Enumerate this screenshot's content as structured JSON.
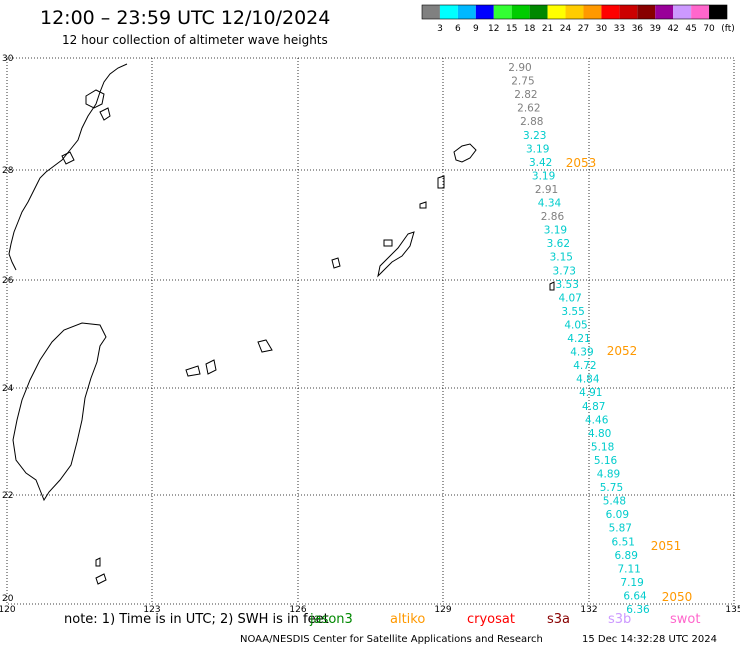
{
  "title": "12:00 – 23:59 UTC 12/10/2024",
  "subtitle": "12 hour collection of altimeter wave heights",
  "colorbar": {
    "colors": [
      "#808080",
      "#00ffff",
      "#00b8ff",
      "#0000ff",
      "#33ff33",
      "#00cc00",
      "#008800",
      "#ffff00",
      "#ffcc00",
      "#ff9900",
      "#ff0000",
      "#cc0000",
      "#880000",
      "#990099",
      "#cc99ff",
      "#ff66cc",
      "#000000"
    ],
    "labels": [
      "3",
      "6",
      "9",
      "12",
      "15",
      "18",
      "21",
      "24",
      "27",
      "30",
      "33",
      "36",
      "39",
      "42",
      "45",
      "70"
    ],
    "unit": "(ft)"
  },
  "axes": {
    "lon_labels": [
      "120",
      "123",
      "126",
      "129",
      "132",
      "135"
    ],
    "lat_labels": [
      "30",
      "28",
      "26",
      "24",
      "22",
      "20"
    ]
  },
  "track": [
    {
      "v": "2.90",
      "c": "#808080"
    },
    {
      "v": "2.75",
      "c": "#808080"
    },
    {
      "v": "2.82",
      "c": "#808080"
    },
    {
      "v": "2.62",
      "c": "#808080"
    },
    {
      "v": "2.88",
      "c": "#808080"
    },
    {
      "v": "3.23",
      "c": "#00cccc"
    },
    {
      "v": "3.19",
      "c": "#00cccc"
    },
    {
      "v": "3.42",
      "c": "#00cccc"
    },
    {
      "v": "3.19",
      "c": "#00cccc"
    },
    {
      "v": "2.91",
      "c": "#808080"
    },
    {
      "v": "4.34",
      "c": "#00cccc"
    },
    {
      "v": "2.86",
      "c": "#808080"
    },
    {
      "v": "3.19",
      "c": "#00cccc"
    },
    {
      "v": "3.62",
      "c": "#00cccc"
    },
    {
      "v": "3.15",
      "c": "#00cccc"
    },
    {
      "v": "3.73",
      "c": "#00cccc"
    },
    {
      "v": "3.53",
      "c": "#00cccc"
    },
    {
      "v": "4.07",
      "c": "#00cccc"
    },
    {
      "v": "3.55",
      "c": "#00cccc"
    },
    {
      "v": "4.05",
      "c": "#00cccc"
    },
    {
      "v": "4.21",
      "c": "#00cccc"
    },
    {
      "v": "4.39",
      "c": "#00cccc"
    },
    {
      "v": "4.72",
      "c": "#00cccc"
    },
    {
      "v": "4.84",
      "c": "#00cccc"
    },
    {
      "v": "4.91",
      "c": "#00cccc"
    },
    {
      "v": "4.87",
      "c": "#00cccc"
    },
    {
      "v": "4.46",
      "c": "#00cccc"
    },
    {
      "v": "4.80",
      "c": "#00cccc"
    },
    {
      "v": "5.18",
      "c": "#00cccc"
    },
    {
      "v": "5.16",
      "c": "#00cccc"
    },
    {
      "v": "4.89",
      "c": "#00cccc"
    },
    {
      "v": "5.75",
      "c": "#00cccc"
    },
    {
      "v": "5.48",
      "c": "#00cccc"
    },
    {
      "v": "6.09",
      "c": "#00cccc"
    },
    {
      "v": "5.87",
      "c": "#00cccc"
    },
    {
      "v": "6.51",
      "c": "#00cccc"
    },
    {
      "v": "6.89",
      "c": "#00cccc"
    },
    {
      "v": "7.11",
      "c": "#00cccc"
    },
    {
      "v": "7.19",
      "c": "#00cccc"
    },
    {
      "v": "6.64",
      "c": "#00cccc"
    },
    {
      "v": "6.36",
      "c": "#00cccc"
    }
  ],
  "pass_times": [
    "2053",
    "2052",
    "2051",
    "2050"
  ],
  "note": "note: 1) Time is in UTC; 2) SWH is in feet",
  "satellites": [
    {
      "name": "jason3",
      "color": "#008800"
    },
    {
      "name": "altiko",
      "color": "#ff9900"
    },
    {
      "name": "cryosat",
      "color": "#ff0000"
    },
    {
      "name": "s3a",
      "color": "#880000"
    },
    {
      "name": "s3b",
      "color": "#cc99ff"
    },
    {
      "name": "swot",
      "color": "#ff66cc"
    }
  ],
  "footer_left": "NOAA/NESDIS Center for Satellite Applications and Research",
  "footer_right": "15 Dec 14:32:28 UTC 2024"
}
